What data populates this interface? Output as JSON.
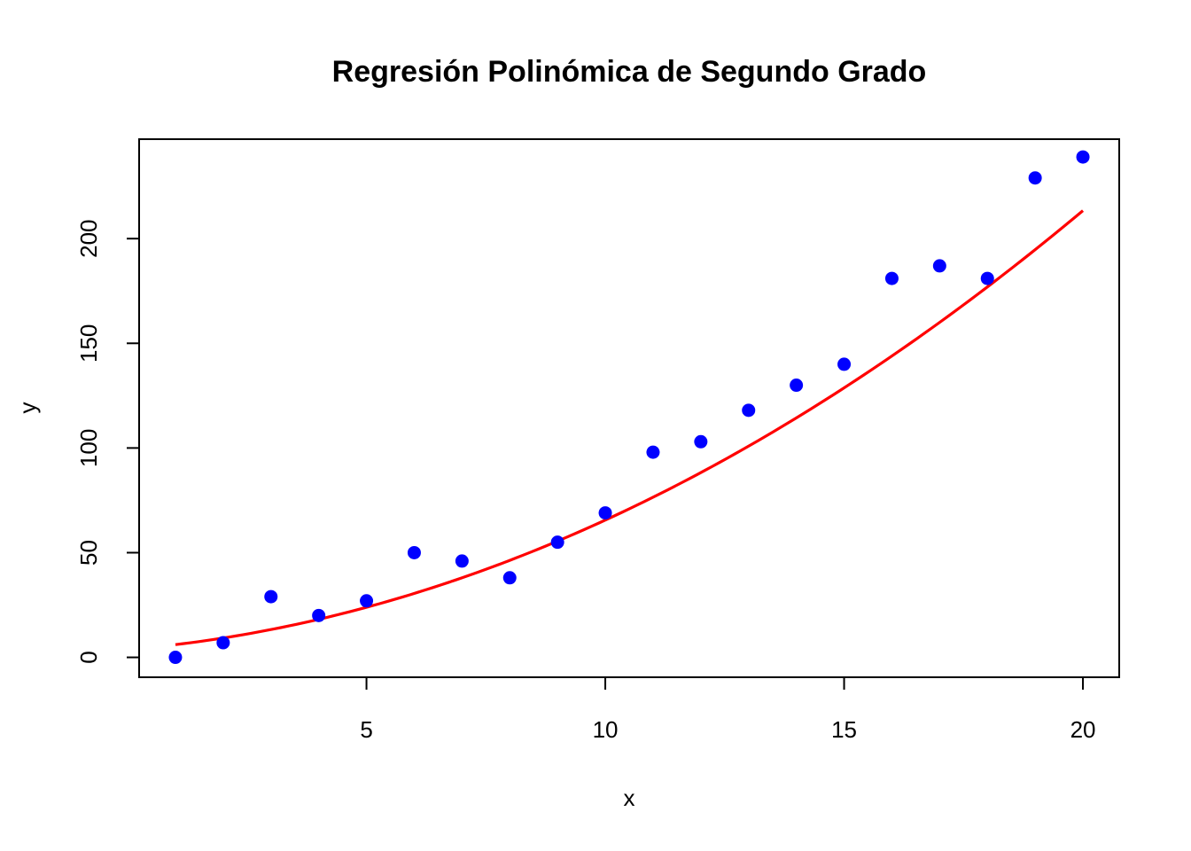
{
  "chart_data": {
    "type": "scatter",
    "title": "Regresión Polinómica de Segundo Grado",
    "xlabel": "x",
    "ylabel": "y",
    "xlim": [
      0.24,
      20.76
    ],
    "ylim": [
      -9.5,
      247.5
    ],
    "x_ticks": [
      5,
      10,
      15,
      20
    ],
    "y_ticks": [
      0,
      50,
      100,
      150,
      200
    ],
    "grid": false,
    "series": [
      {
        "type": "scatter",
        "color": "#0000ff",
        "points": [
          {
            "x": 1,
            "y": 0
          },
          {
            "x": 2,
            "y": 7
          },
          {
            "x": 3,
            "y": 29
          },
          {
            "x": 4,
            "y": 20
          },
          {
            "x": 5,
            "y": 27
          },
          {
            "x": 6,
            "y": 50
          },
          {
            "x": 7,
            "y": 46
          },
          {
            "x": 8,
            "y": 38
          },
          {
            "x": 9,
            "y": 55
          },
          {
            "x": 10,
            "y": 69
          },
          {
            "x": 11,
            "y": 98
          },
          {
            "x": 12,
            "y": 103
          },
          {
            "x": 13,
            "y": 118
          },
          {
            "x": 14,
            "y": 130
          },
          {
            "x": 15,
            "y": 140
          },
          {
            "x": 16,
            "y": 181
          },
          {
            "x": 17,
            "y": 187
          },
          {
            "x": 18,
            "y": 181
          },
          {
            "x": 19,
            "y": 229
          },
          {
            "x": 20,
            "y": 239
          }
        ]
      },
      {
        "type": "line",
        "color": "#ff0000",
        "fit": "quadratic",
        "coefficients": {
          "a": 3.77,
          "b": 1.88,
          "c": 0.43
        },
        "x_range": [
          1,
          20
        ]
      }
    ]
  }
}
